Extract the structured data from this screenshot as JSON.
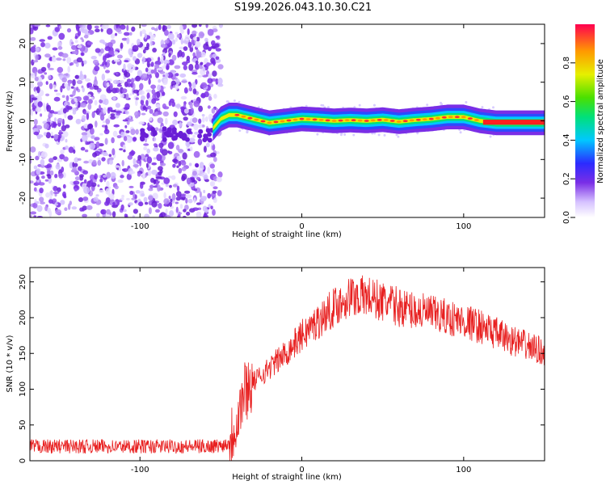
{
  "title": "S199.2026.043.10.30.C21",
  "colors": {
    "signal_line": "#e82020",
    "noise_purple": "#7a2ee6",
    "background": "#ffffff"
  },
  "chart_data": [
    {
      "type": "heatmap",
      "xlabel": "Height of straight line (km)",
      "ylabel": "Frequency (Hz)",
      "xlim": [
        -168,
        150
      ],
      "ylim": [
        -25,
        25
      ],
      "x_ticks": [
        -100,
        0,
        100
      ],
      "y_ticks": [
        -20,
        -10,
        0,
        10,
        20
      ],
      "grid": false,
      "colorbar": {
        "label": "Normalized spectral amplitude",
        "range": [
          0,
          1
        ],
        "ticks": [
          0.0,
          0.2,
          0.4,
          0.6,
          0.8
        ],
        "colormap": "rainbow"
      },
      "regions": [
        {
          "x_range": [
            -168,
            -50
          ],
          "description_level": "noise"
        },
        {
          "x_range": [
            -50,
            150
          ],
          "trace_center_hz": 0
        }
      ],
      "ridge": {
        "x": [
          -55,
          -50,
          -45,
          -40,
          -30,
          -20,
          -10,
          0,
          10,
          20,
          30,
          40,
          50,
          60,
          70,
          80,
          90,
          100,
          110,
          120,
          130,
          140,
          150
        ],
        "freq": [
          -2,
          0.5,
          1.5,
          1.5,
          0.5,
          -0.5,
          0,
          0.5,
          0.3,
          0,
          0.2,
          0,
          0.3,
          -0.2,
          0.2,
          0.5,
          1,
          1,
          0,
          -0.5,
          -0.5,
          -0.5,
          -0.5
        ]
      }
    },
    {
      "type": "line",
      "xlabel": "Height of straight line (km)",
      "ylabel": "SNR (10 * v/v)",
      "xlim": [
        -168,
        150
      ],
      "ylim": [
        0,
        270
      ],
      "x_ticks": [
        -100,
        0,
        100
      ],
      "y_ticks": [
        0,
        50,
        100,
        150,
        200,
        250
      ],
      "grid": false,
      "series": [
        {
          "x": [
            -168,
            -150,
            -120,
            -100,
            -80,
            -60,
            -50,
            -45,
            -40,
            -35,
            -30,
            -20,
            -10,
            0,
            10,
            20,
            30,
            40,
            50,
            60,
            80,
            100,
            110,
            120,
            130,
            140,
            150
          ],
          "values": [
            20,
            20,
            20,
            20,
            20,
            20,
            21,
            25,
            60,
            100,
            110,
            130,
            150,
            175,
            195,
            215,
            230,
            230,
            222,
            215,
            205,
            195,
            188,
            178,
            168,
            160,
            152
          ]
        }
      ]
    }
  ]
}
